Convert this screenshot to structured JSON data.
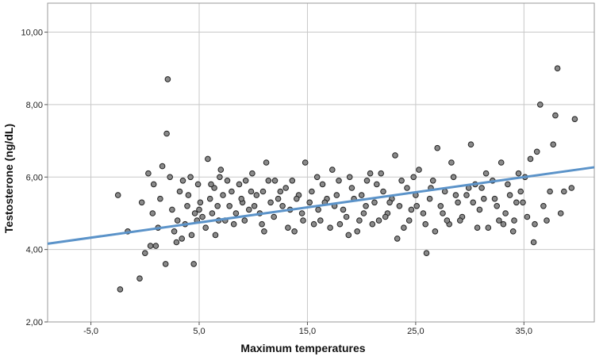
{
  "chart_data": {
    "type": "scatter",
    "xlabel": "Maximum temperatures",
    "ylabel": "Testosterone (ng/dL)",
    "xlim": [
      -9,
      41.5
    ],
    "ylim": [
      2.0,
      10.8
    ],
    "x_ticks": [
      -5,
      5,
      15,
      25,
      35
    ],
    "x_tick_labels": [
      "-5,0",
      "5,0",
      "15,0",
      "25,0",
      "35,0"
    ],
    "y_ticks": [
      2,
      4,
      6,
      8,
      10
    ],
    "y_tick_labels": [
      "2,00",
      "4,00",
      "6,00",
      "8,00",
      "10,00"
    ],
    "grid": true,
    "fit_line": {
      "x": [
        -9,
        41.5
      ],
      "y": [
        4.16,
        6.27
      ]
    },
    "colors": {
      "point_fill": "#8a8a8a",
      "point_stroke": "#222222",
      "fit_line": "#5b93c9",
      "grid": "#c8c8c8",
      "frame": "#9a9a9a"
    },
    "series": [
      {
        "points": [
          [
            -2.5,
            5.5
          ],
          [
            -2.3,
            2.9
          ],
          [
            -1.6,
            4.5
          ],
          [
            -0.5,
            3.2
          ],
          [
            -0.3,
            5.3
          ],
          [
            0,
            3.9
          ],
          [
            0.3,
            6.1
          ],
          [
            0.5,
            4.1
          ],
          [
            0.7,
            5.0
          ],
          [
            1.0,
            4.1
          ],
          [
            1.4,
            5.4
          ],
          [
            1.6,
            6.3
          ],
          [
            1.9,
            3.6
          ],
          [
            2.0,
            7.2
          ],
          [
            2.1,
            8.7
          ],
          [
            2.3,
            6.0
          ],
          [
            2.5,
            5.1
          ],
          [
            2.7,
            4.5
          ],
          [
            3.0,
            4.8
          ],
          [
            3.2,
            5.6
          ],
          [
            3.4,
            4.3
          ],
          [
            3.7,
            4.7
          ],
          [
            3.9,
            5.2
          ],
          [
            4.0,
            5.5
          ],
          [
            4.3,
            4.4
          ],
          [
            4.5,
            3.6
          ],
          [
            4.6,
            5.0
          ],
          [
            4.9,
            5.8
          ],
          [
            5.1,
            5.3
          ],
          [
            5.3,
            4.9
          ],
          [
            5.6,
            4.6
          ],
          [
            5.8,
            6.5
          ],
          [
            6.0,
            5.4
          ],
          [
            6.2,
            5.0
          ],
          [
            6.4,
            5.7
          ],
          [
            6.7,
            5.2
          ],
          [
            6.9,
            6.0
          ],
          [
            7.2,
            5.5
          ],
          [
            7.4,
            4.8
          ],
          [
            7.8,
            5.2
          ],
          [
            8.0,
            5.6
          ],
          [
            8.4,
            5.0
          ],
          [
            8.7,
            5.8
          ],
          [
            9.0,
            5.3
          ],
          [
            9.3,
            5.9
          ],
          [
            9.6,
            5.1
          ],
          [
            9.9,
            6.1
          ],
          [
            10.3,
            5.5
          ],
          [
            10.6,
            5.0
          ],
          [
            10.9,
            5.6
          ],
          [
            11.2,
            6.4
          ],
          [
            11.6,
            5.3
          ],
          [
            11.9,
            4.9
          ],
          [
            12.3,
            5.4
          ],
          [
            12.7,
            5.2
          ],
          [
            13.0,
            5.7
          ],
          [
            13.4,
            5.1
          ],
          [
            13.8,
            4.5
          ],
          [
            14.2,
            5.5
          ],
          [
            14.5,
            5.0
          ],
          [
            14.8,
            6.4
          ],
          [
            15.2,
            5.3
          ],
          [
            15.6,
            4.7
          ],
          [
            16.0,
            5.1
          ],
          [
            16.4,
            5.8
          ],
          [
            16.8,
            5.4
          ],
          [
            17.1,
            4.6
          ],
          [
            17.5,
            5.2
          ],
          [
            17.9,
            5.9
          ],
          [
            18.3,
            5.1
          ],
          [
            18.6,
            4.9
          ],
          [
            18.9,
            6.0
          ],
          [
            19.3,
            5.4
          ],
          [
            19.6,
            4.5
          ],
          [
            20.0,
            5.5
          ],
          [
            20.4,
            5.2
          ],
          [
            20.8,
            6.1
          ],
          [
            21.2,
            5.3
          ],
          [
            21.6,
            4.8
          ],
          [
            22.0,
            5.6
          ],
          [
            22.4,
            5.0
          ],
          [
            22.8,
            5.4
          ],
          [
            23.1,
            6.6
          ],
          [
            23.5,
            5.2
          ],
          [
            23.9,
            4.6
          ],
          [
            24.2,
            5.7
          ],
          [
            24.6,
            5.1
          ],
          [
            25.0,
            5.5
          ],
          [
            25.3,
            6.2
          ],
          [
            25.7,
            5.0
          ],
          [
            26.0,
            3.9
          ],
          [
            26.3,
            5.4
          ],
          [
            26.6,
            5.9
          ],
          [
            27.0,
            6.8
          ],
          [
            27.3,
            5.2
          ],
          [
            27.7,
            5.6
          ],
          [
            28.1,
            4.7
          ],
          [
            28.5,
            6.0
          ],
          [
            28.9,
            5.3
          ],
          [
            29.3,
            4.9
          ],
          [
            29.7,
            5.5
          ],
          [
            30.1,
            6.9
          ],
          [
            30.5,
            5.8
          ],
          [
            30.9,
            5.1
          ],
          [
            31.3,
            5.4
          ],
          [
            31.7,
            4.6
          ],
          [
            32.1,
            5.9
          ],
          [
            32.5,
            5.2
          ],
          [
            32.9,
            6.4
          ],
          [
            33.3,
            5.0
          ],
          [
            33.7,
            5.5
          ],
          [
            34.1,
            4.8
          ],
          [
            34.5,
            6.1
          ],
          [
            34.9,
            5.3
          ],
          [
            35.3,
            4.9
          ],
          [
            35.6,
            6.5
          ],
          [
            35.9,
            4.2
          ],
          [
            36.2,
            6.7
          ],
          [
            36.5,
            8.0
          ],
          [
            36.8,
            5.2
          ],
          [
            37.1,
            4.8
          ],
          [
            37.4,
            5.6
          ],
          [
            37.7,
            6.9
          ],
          [
            37.9,
            7.7
          ],
          [
            38.1,
            9.0
          ],
          [
            38.4,
            5.0
          ],
          [
            38.7,
            5.6
          ],
          [
            39.4,
            5.7
          ],
          [
            39.7,
            7.6
          ],
          [
            0.8,
            5.8
          ],
          [
            1.2,
            4.6
          ],
          [
            3.5,
            5.9
          ],
          [
            4.2,
            6.0
          ],
          [
            6.5,
            4.4
          ],
          [
            7.0,
            6.2
          ],
          [
            8.2,
            4.7
          ],
          [
            9.8,
            5.6
          ],
          [
            10.8,
            4.7
          ],
          [
            12.0,
            5.9
          ],
          [
            13.6,
            5.9
          ],
          [
            15.9,
            6.0
          ],
          [
            17.3,
            6.2
          ],
          [
            18.8,
            4.4
          ],
          [
            20.5,
            5.9
          ],
          [
            21.8,
            6.1
          ],
          [
            23.3,
            4.3
          ],
          [
            24.8,
            6.0
          ],
          [
            26.8,
            4.5
          ],
          [
            28.3,
            6.4
          ],
          [
            29.9,
            5.7
          ],
          [
            31.5,
            6.1
          ],
          [
            33.1,
            4.7
          ],
          [
            34.7,
            5.6
          ],
          [
            35.1,
            6.0
          ],
          [
            5.0,
            5.1
          ],
          [
            6.1,
            5.8
          ],
          [
            7.6,
            5.9
          ],
          [
            8.9,
            5.4
          ],
          [
            10.1,
            5.2
          ],
          [
            11.4,
            5.9
          ],
          [
            12.5,
            5.6
          ],
          [
            14.0,
            5.4
          ],
          [
            15.4,
            5.6
          ],
          [
            16.6,
            5.3
          ],
          [
            17.7,
            5.5
          ],
          [
            19.1,
            5.7
          ],
          [
            20.2,
            5.0
          ],
          [
            21.4,
            5.8
          ],
          [
            22.6,
            5.3
          ],
          [
            23.7,
            5.9
          ],
          [
            25.1,
            5.2
          ],
          [
            26.4,
            5.7
          ],
          [
            27.5,
            5.0
          ],
          [
            28.7,
            5.5
          ],
          [
            30.3,
            5.3
          ],
          [
            31.1,
            5.7
          ],
          [
            32.3,
            5.4
          ],
          [
            33.5,
            5.8
          ],
          [
            34.3,
            5.3
          ],
          [
            2.9,
            4.2
          ],
          [
            4.8,
            4.8
          ],
          [
            6.8,
            4.8
          ],
          [
            9.2,
            4.8
          ],
          [
            11.0,
            4.5
          ],
          [
            13.2,
            4.6
          ],
          [
            14.6,
            4.8
          ],
          [
            16.2,
            4.8
          ],
          [
            18.0,
            4.7
          ],
          [
            19.8,
            4.8
          ],
          [
            21.0,
            4.7
          ],
          [
            22.2,
            4.9
          ],
          [
            24.4,
            4.8
          ],
          [
            25.9,
            4.7
          ],
          [
            27.9,
            4.8
          ],
          [
            29.1,
            4.8
          ],
          [
            30.7,
            4.6
          ],
          [
            32.7,
            4.8
          ],
          [
            34.0,
            4.5
          ],
          [
            36.0,
            4.7
          ]
        ]
      }
    ]
  }
}
